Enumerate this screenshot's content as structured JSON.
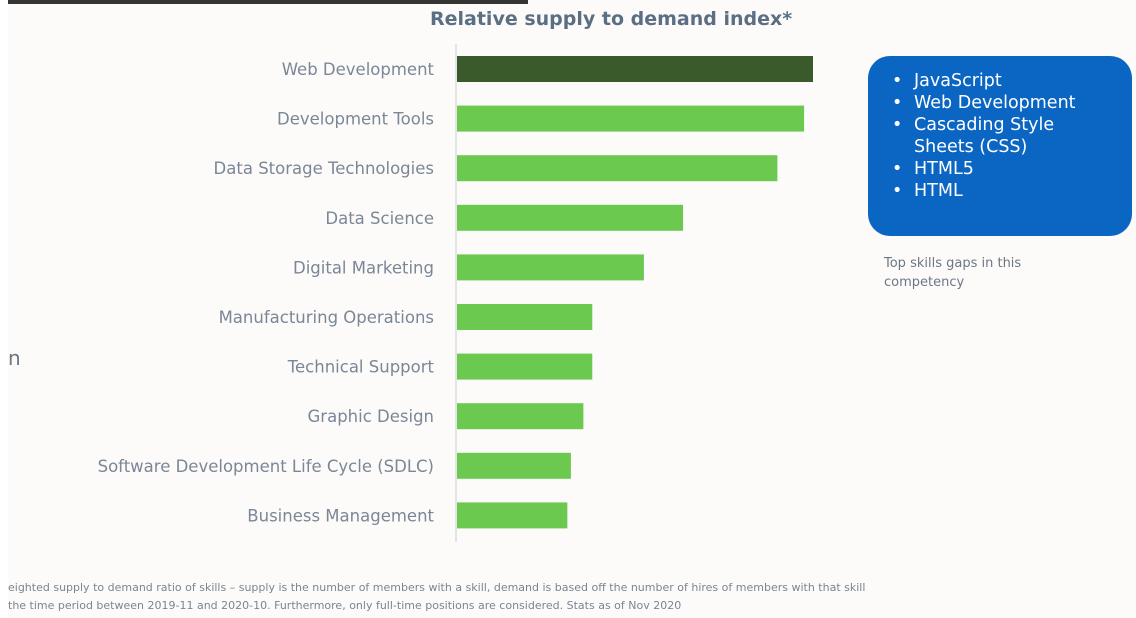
{
  "chart_data": {
    "type": "bar",
    "orientation": "horizontal",
    "title": "Relative supply to demand index*",
    "categories": [
      "Web Development",
      "Development Tools",
      "Data Storage Technologies",
      "Data Science",
      "Digital Marketing",
      "Manufacturing Operations",
      "Technical Support",
      "Graphic Design",
      "Software Development Life Cycle (SDLC)",
      "Business Management"
    ],
    "values": [
      100,
      97.5,
      90,
      63.5,
      52.5,
      38,
      38,
      35.5,
      32,
      31
    ],
    "highlight_index": 0,
    "xlim": [
      0,
      100
    ],
    "grid": false,
    "legend_position": "right"
  },
  "colors": {
    "highlight_bar": "#3a5a2c",
    "bar": "#6cc950",
    "legend_bg": "#0a66c2"
  },
  "legend": {
    "items": [
      "JavaScript",
      "Web Development",
      "Cascading Style Sheets (CSS)",
      "HTML5",
      "HTML"
    ],
    "caption": "Top skills gaps in this competency"
  },
  "footnote": {
    "line1": "eighted supply to demand ratio of skills – supply is the number of members with a skill, demand is based off the number of hires of members with that skill",
    "line2": "the time period between 2019-11 and 2020-10. Furthermore, only full-time positions are considered.     Stats as of Nov 2020"
  },
  "edge_text": "n"
}
